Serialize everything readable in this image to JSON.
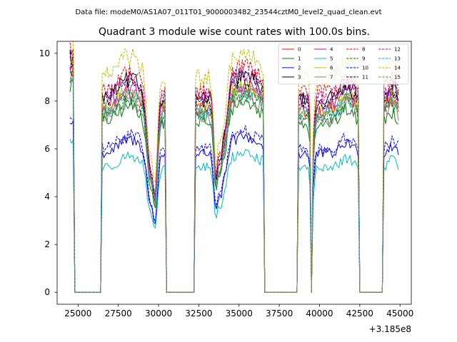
{
  "header": {
    "suptitle": "Data file: modeM0/AS1A07_011T01_9000003482_23544cztM0_level2_quad_clean.evt"
  },
  "chart_data": {
    "type": "line",
    "title": "Quadrant 3 module wise count rates with 100.0s bins.",
    "xlabel": "",
    "ylabel": "",
    "x_offset_label": "+3.185e8",
    "xlim": [
      23700,
      45700
    ],
    "ylim": [
      -0.5,
      10.5
    ],
    "xticks": [
      25000,
      27500,
      30000,
      32500,
      35000,
      37500,
      40000,
      42500,
      45000
    ],
    "xtick_labels": [
      "25000",
      "27500",
      "30000",
      "32500",
      "35000",
      "37500",
      "40000",
      "42500",
      "45000"
    ],
    "yticks": [
      0,
      2,
      4,
      6,
      8,
      10
    ],
    "ytick_labels": [
      "0",
      "2",
      "4",
      "6",
      "8",
      "10"
    ],
    "legend_position": "top-right",
    "segments": [
      {
        "start": 24500,
        "end": 24700
      },
      {
        "start": 26500,
        "end": 30200
      },
      {
        "start": 30300,
        "end": 30400
      },
      {
        "start": 32300,
        "end": 36500
      },
      {
        "start": 38700,
        "end": 39400
      },
      {
        "start": 39600,
        "end": 39800
      },
      {
        "start": 39900,
        "end": 42400
      },
      {
        "start": 44000,
        "end": 44900
      }
    ],
    "series": [
      {
        "name": "0",
        "color": "#ff0000",
        "dash": "solid",
        "level": 7.6,
        "scale": 1.0
      },
      {
        "name": "1",
        "color": "#008000",
        "dash": "solid",
        "level": 7.1,
        "scale": 0.95
      },
      {
        "name": "2",
        "color": "#0000ff",
        "dash": "solid",
        "level": 5.8,
        "scale": 0.78
      },
      {
        "name": "3",
        "color": "#000000",
        "dash": "solid",
        "level": 8.1,
        "scale": 1.07
      },
      {
        "name": "4",
        "color": "#bf00bf",
        "dash": "solid",
        "level": 7.8,
        "scale": 1.03
      },
      {
        "name": "5",
        "color": "#00bfbf",
        "dash": "solid",
        "level": 5.2,
        "scale": 0.7
      },
      {
        "name": "6",
        "color": "#bfbf00",
        "dash": "solid",
        "level": 7.7,
        "scale": 1.02
      },
      {
        "name": "7",
        "color": "#808080",
        "dash": "solid",
        "level": 7.3,
        "scale": 0.97
      },
      {
        "name": "8",
        "color": "#ff0000",
        "dash": "dashed",
        "level": 8.4,
        "scale": 1.1
      },
      {
        "name": "9",
        "color": "#008000",
        "dash": "dashed",
        "level": 7.4,
        "scale": 0.98
      },
      {
        "name": "10",
        "color": "#0000ff",
        "dash": "dashed",
        "level": 6.0,
        "scale": 0.8
      },
      {
        "name": "11",
        "color": "#000000",
        "dash": "dashed",
        "level": 8.0,
        "scale": 1.06
      },
      {
        "name": "12",
        "color": "#bf00bf",
        "dash": "dashed",
        "level": 8.2,
        "scale": 1.08
      },
      {
        "name": "13",
        "color": "#00bfbf",
        "dash": "dashed",
        "level": 7.5,
        "scale": 0.99
      },
      {
        "name": "14",
        "color": "#bfbf00",
        "dash": "dashed",
        "level": 9.0,
        "scale": 1.18
      },
      {
        "name": "15",
        "color": "#808080",
        "dash": "dashed",
        "level": 7.6,
        "scale": 1.0
      }
    ]
  }
}
